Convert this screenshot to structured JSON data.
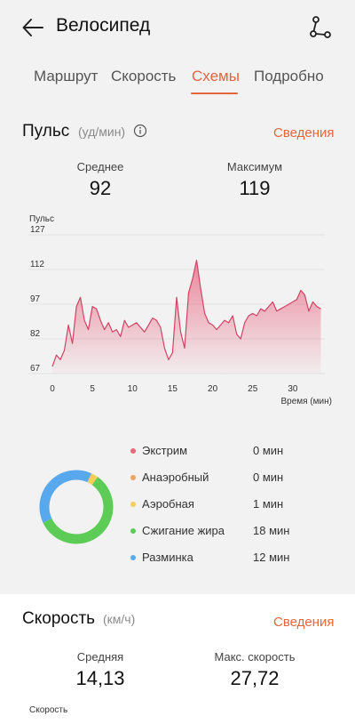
{
  "header": {
    "title": "Велосипед"
  },
  "tabs": [
    {
      "label": "Маршрут",
      "active": false
    },
    {
      "label": "Скорость",
      "active": false
    },
    {
      "label": "Схемы",
      "active": true
    },
    {
      "label": "Подробно",
      "active": false
    }
  ],
  "pulse": {
    "title": "Пульс",
    "unit": "(уд/мин)",
    "details_label": "Сведения",
    "avg_label": "Среднее",
    "avg_value": "92",
    "max_label": "Максимум",
    "max_value": "119"
  },
  "chart_data": {
    "type": "area",
    "title": "",
    "ylabel": "Пульс",
    "xlabel": "Время (мин)",
    "ylim": [
      67,
      127
    ],
    "xlim": [
      0,
      34
    ],
    "y_ticks": [
      127,
      112,
      97,
      82,
      67
    ],
    "x_ticks": [
      0,
      5,
      10,
      15,
      20,
      25,
      30
    ],
    "color": "#e0607e",
    "series": [
      {
        "x": [
          0,
          0.5,
          1,
          1.5,
          2,
          2.5,
          3,
          3.5,
          4,
          4.5,
          5,
          5.5,
          6,
          6.5,
          7,
          7.5,
          8,
          8.5,
          9,
          9.5,
          10,
          10.5,
          11,
          11.5,
          12,
          12.5,
          13,
          13.5,
          14,
          14.5,
          15,
          15.5,
          16,
          16.5,
          17,
          17.5,
          18,
          18.5,
          19,
          19.5,
          20,
          20.5,
          21,
          21.5,
          22,
          22.5,
          23,
          23.5,
          24,
          24.5,
          25,
          25.5,
          26,
          26.5,
          27,
          27.5,
          28,
          28.5,
          29,
          29.5,
          30,
          30.5,
          31,
          31.5,
          32,
          32.5,
          33,
          33.5
        ],
        "y": [
          70,
          75,
          73,
          77,
          88,
          80,
          96,
          100,
          90,
          86,
          96,
          95,
          90,
          86,
          89,
          85,
          86,
          83,
          90,
          87,
          88,
          89,
          87,
          85,
          88,
          91,
          90,
          87,
          78,
          73,
          76,
          100,
          85,
          78,
          102,
          108,
          116,
          104,
          93,
          89,
          88,
          86,
          88,
          90,
          89,
          92,
          84,
          82,
          89,
          92,
          93,
          92,
          95,
          94,
          96,
          98,
          94,
          95,
          96,
          97,
          98,
          99,
          103,
          101,
          94,
          98,
          96,
          95
        ]
      }
    ]
  },
  "zones": [
    {
      "name": "Экстрим",
      "time": "0 мин",
      "minutes": 0,
      "color": "#e86a7b"
    },
    {
      "name": "Анаэробный",
      "time": "0 мин",
      "minutes": 0,
      "color": "#f0a461"
    },
    {
      "name": "Аэробная",
      "time": "1 мин",
      "minutes": 1,
      "color": "#f4cd5a"
    },
    {
      "name": "Сжигание жира",
      "time": "18 мин",
      "minutes": 18,
      "color": "#5dcc57"
    },
    {
      "name": "Разминка",
      "time": "12 мин",
      "minutes": 12,
      "color": "#58a8ee"
    }
  ],
  "speed": {
    "title": "Скорость",
    "unit": "(км/ч)",
    "details_label": "Сведения",
    "avg_label": "Средняя",
    "avg_value": "14,13",
    "max_label": "Макс. скорость",
    "max_value": "27,72",
    "chart_ylabel": "Скорость"
  }
}
